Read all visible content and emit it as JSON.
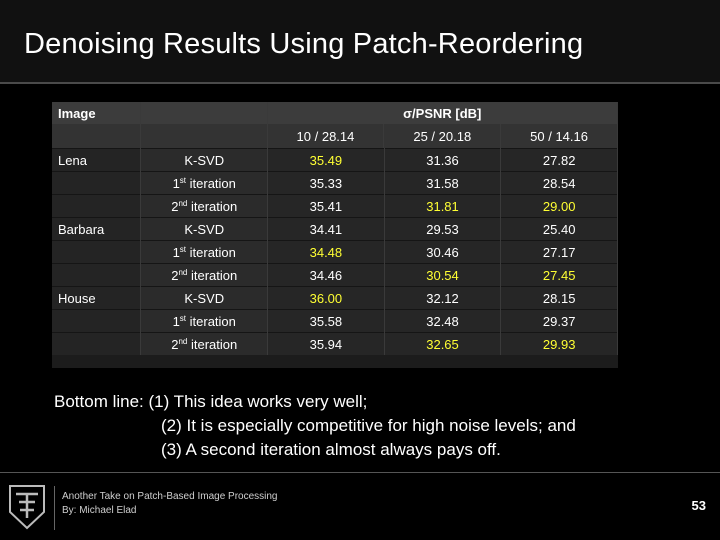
{
  "slide": {
    "title": "Denoising Results Using Patch-Reordering",
    "page_number": "53",
    "footer_line1": "Another Take on Patch-Based Image Processing",
    "footer_line2": "By: Michael Elad"
  },
  "table": {
    "image_header": "Image",
    "metric_header": "σ/PSNR [dB]",
    "noise_levels": [
      "10 / 28.14",
      "25 / 20.18",
      "50 / 14.16"
    ],
    "images": [
      "Lena",
      "Barbara",
      "House"
    ],
    "methods": [
      {
        "main": "K-SVD",
        "sup": ""
      },
      {
        "prefix": "1",
        "sup": "st",
        "main": " iteration"
      },
      {
        "prefix": "2",
        "sup": "nd",
        "main": " iteration"
      }
    ],
    "rows": [
      [
        "35.49",
        "31.36",
        "27.82"
      ],
      [
        "35.33",
        "31.58",
        "28.54"
      ],
      [
        "35.41",
        "31.81",
        "29.00"
      ],
      [
        "34.41",
        "29.53",
        "25.40"
      ],
      [
        "34.48",
        "30.46",
        "27.17"
      ],
      [
        "34.46",
        "30.54",
        "27.45"
      ],
      [
        "36.00",
        "32.12",
        "28.15"
      ],
      [
        "35.58",
        "32.48",
        "29.37"
      ],
      [
        "35.94",
        "32.65",
        "29.93"
      ]
    ],
    "highlight_color": "#ffff33"
  },
  "bottom_line": {
    "line1": "Bottom line: (1) This idea works very well;",
    "line2": "(2) It is especially competitive for high noise levels; and",
    "line3": "(3) A second iteration almost always pays off."
  }
}
